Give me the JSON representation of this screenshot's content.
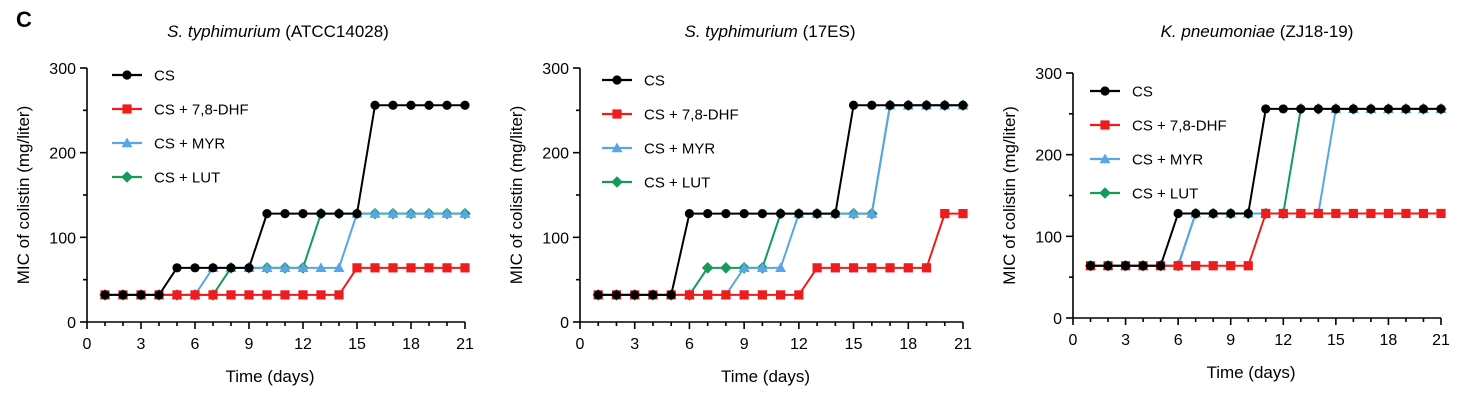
{
  "panel_label": "C",
  "chart_data": [
    {
      "type": "line",
      "title_species": "S. typhimurium",
      "title_strain": "(ATCC14028)",
      "xlabel": "Time (days)",
      "ylabel": "MIC of colistin (mg/liter)",
      "xlim": [
        0,
        21
      ],
      "ylim": [
        0,
        300
      ],
      "xticks": [
        0,
        3,
        6,
        9,
        12,
        15,
        18,
        21
      ],
      "yticks": [
        0,
        100,
        200,
        300
      ],
      "grid": false,
      "legend_position": "top-left",
      "x": [
        1,
        2,
        3,
        4,
        5,
        6,
        7,
        8,
        9,
        10,
        11,
        12,
        13,
        14,
        15,
        16,
        17,
        18,
        19,
        20,
        21
      ],
      "series": [
        {
          "name": "CS",
          "color": "#000000",
          "marker": "circle",
          "values": [
            32,
            32,
            32,
            32,
            64,
            64,
            64,
            64,
            64,
            128,
            128,
            128,
            128,
            128,
            128,
            256,
            256,
            256,
            256,
            256,
            256
          ]
        },
        {
          "name": "CS + 7,8-DHF",
          "color": "#ee1c1c",
          "marker": "square",
          "values": [
            32,
            32,
            32,
            32,
            32,
            32,
            32,
            32,
            32,
            32,
            32,
            32,
            32,
            32,
            64,
            64,
            64,
            64,
            64,
            64,
            64
          ]
        },
        {
          "name": "CS + MYR",
          "color": "#5aa5e6",
          "marker": "triangle",
          "values": [
            32,
            32,
            32,
            32,
            32,
            32,
            64,
            64,
            64,
            64,
            64,
            64,
            64,
            64,
            128,
            128,
            128,
            128,
            128,
            128,
            128
          ]
        },
        {
          "name": "CS + LUT",
          "color": "#159a5a",
          "marker": "diamond",
          "values": [
            32,
            32,
            32,
            32,
            32,
            32,
            32,
            64,
            64,
            64,
            64,
            64,
            128,
            128,
            128,
            128,
            128,
            128,
            128,
            128,
            128
          ]
        }
      ]
    },
    {
      "type": "line",
      "title_species": "S. typhimurium",
      "title_strain": "(17ES)",
      "xlabel": "Time (days)",
      "ylabel": "MIC of colistin (mg/liter)",
      "xlim": [
        0,
        21
      ],
      "ylim": [
        0,
        300
      ],
      "xticks": [
        0,
        3,
        6,
        9,
        12,
        15,
        18,
        21
      ],
      "yticks": [
        0,
        100,
        200,
        300
      ],
      "grid": false,
      "legend_position": "top-left",
      "x": [
        1,
        2,
        3,
        4,
        5,
        6,
        7,
        8,
        9,
        10,
        11,
        12,
        13,
        14,
        15,
        16,
        17,
        18,
        19,
        20,
        21
      ],
      "series": [
        {
          "name": "CS",
          "color": "#000000",
          "marker": "circle",
          "values": [
            32,
            32,
            32,
            32,
            32,
            128,
            128,
            128,
            128,
            128,
            128,
            128,
            128,
            128,
            256,
            256,
            256,
            256,
            256,
            256,
            256
          ]
        },
        {
          "name": "CS + 7,8-DHF",
          "color": "#ee1c1c",
          "marker": "square",
          "values": [
            32,
            32,
            32,
            32,
            32,
            32,
            32,
            32,
            32,
            32,
            32,
            32,
            64,
            64,
            64,
            64,
            64,
            64,
            64,
            128,
            128
          ]
        },
        {
          "name": "CS + MYR",
          "color": "#5aa5e6",
          "marker": "triangle",
          "values": [
            32,
            32,
            32,
            32,
            32,
            32,
            32,
            32,
            64,
            64,
            64,
            128,
            128,
            128,
            128,
            128,
            256,
            256,
            256,
            256,
            256
          ]
        },
        {
          "name": "CS + LUT",
          "color": "#159a5a",
          "marker": "diamond",
          "values": [
            32,
            32,
            32,
            32,
            32,
            32,
            64,
            64,
            64,
            64,
            128,
            128,
            128,
            128,
            128,
            128,
            256,
            256,
            256,
            256,
            256
          ]
        }
      ]
    },
    {
      "type": "line",
      "title_species": "K. pneumoniae",
      "title_strain": "(ZJ18-19)",
      "xlabel": "Time (days)",
      "ylabel": "MIC of colistin (mg/liter)",
      "xlim": [
        0,
        21
      ],
      "ylim": [
        0,
        300
      ],
      "xticks": [
        0,
        3,
        6,
        9,
        12,
        15,
        18,
        21
      ],
      "yticks": [
        0,
        100,
        200,
        300
      ],
      "grid": false,
      "legend_position": "top-left",
      "x": [
        1,
        2,
        3,
        4,
        5,
        6,
        7,
        8,
        9,
        10,
        11,
        12,
        13,
        14,
        15,
        16,
        17,
        18,
        19,
        20,
        21
      ],
      "series": [
        {
          "name": "CS",
          "color": "#000000",
          "marker": "circle",
          "values": [
            64,
            64,
            64,
            64,
            64,
            128,
            128,
            128,
            128,
            128,
            256,
            256,
            256,
            256,
            256,
            256,
            256,
            256,
            256,
            256,
            256
          ]
        },
        {
          "name": "CS + 7,8-DHF",
          "color": "#ee1c1c",
          "marker": "square",
          "values": [
            64,
            64,
            64,
            64,
            64,
            64,
            64,
            64,
            64,
            64,
            128,
            128,
            128,
            128,
            128,
            128,
            128,
            128,
            128,
            128,
            128
          ]
        },
        {
          "name": "CS + MYR",
          "color": "#5aa5e6",
          "marker": "triangle",
          "values": [
            64,
            64,
            64,
            64,
            64,
            64,
            128,
            128,
            128,
            128,
            128,
            128,
            128,
            128,
            256,
            256,
            256,
            256,
            256,
            256,
            256
          ]
        },
        {
          "name": "CS + LUT",
          "color": "#159a5a",
          "marker": "diamond",
          "values": [
            64,
            64,
            64,
            64,
            64,
            64,
            128,
            128,
            128,
            128,
            128,
            128,
            256,
            256,
            256,
            256,
            256,
            256,
            256,
            256,
            256
          ]
        }
      ]
    }
  ]
}
